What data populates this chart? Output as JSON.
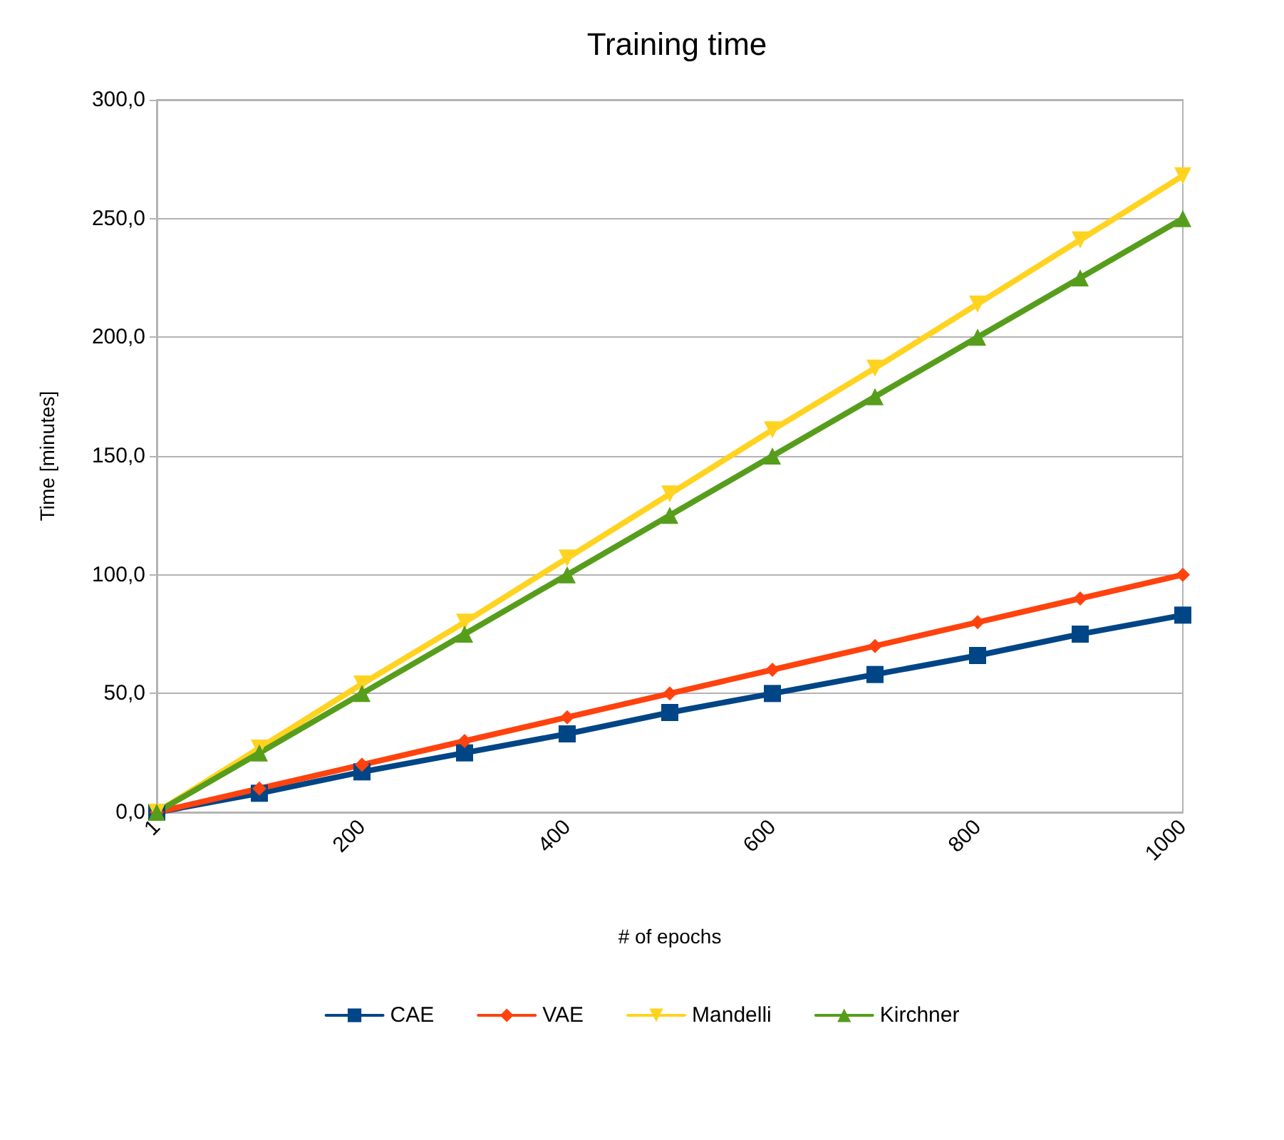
{
  "chart_data": {
    "type": "line",
    "title": "Training time",
    "xlabel": "# of epochs",
    "ylabel": "Time [minutes]",
    "categories": [
      "1",
      null,
      "200",
      null,
      "400",
      null,
      "600",
      null,
      "800",
      null,
      "1000"
    ],
    "series": [
      {
        "name": "CAE",
        "color": "#004586",
        "marker": "square",
        "values": [
          0,
          8,
          17,
          25,
          33,
          42,
          50,
          58,
          66,
          75,
          83
        ]
      },
      {
        "name": "VAE",
        "color": "#ff420e",
        "marker": "diamond",
        "values": [
          0,
          10,
          20,
          30,
          40,
          50,
          60,
          70,
          80,
          90,
          100
        ]
      },
      {
        "name": "Mandelli",
        "color": "#ffd320",
        "marker": "triangle-down",
        "values": [
          0,
          27,
          54,
          80,
          107,
          134,
          161,
          187,
          214,
          241,
          268
        ]
      },
      {
        "name": "Kirchner",
        "color": "#579d1c",
        "marker": "triangle",
        "values": [
          0,
          25,
          50,
          75,
          100,
          125,
          150,
          175,
          200,
          225,
          250
        ]
      }
    ],
    "ylim": [
      0,
      300
    ],
    "yticks": [
      {
        "value": 0,
        "label": "0,0"
      },
      {
        "value": 50,
        "label": "50,0"
      },
      {
        "value": 100,
        "label": "100,0"
      },
      {
        "value": 150,
        "label": "150,0"
      },
      {
        "value": 200,
        "label": "200,0"
      },
      {
        "value": 250,
        "label": "250,0"
      },
      {
        "value": 300,
        "label": "300,0"
      }
    ],
    "grid": "y",
    "legend": "bottom"
  }
}
